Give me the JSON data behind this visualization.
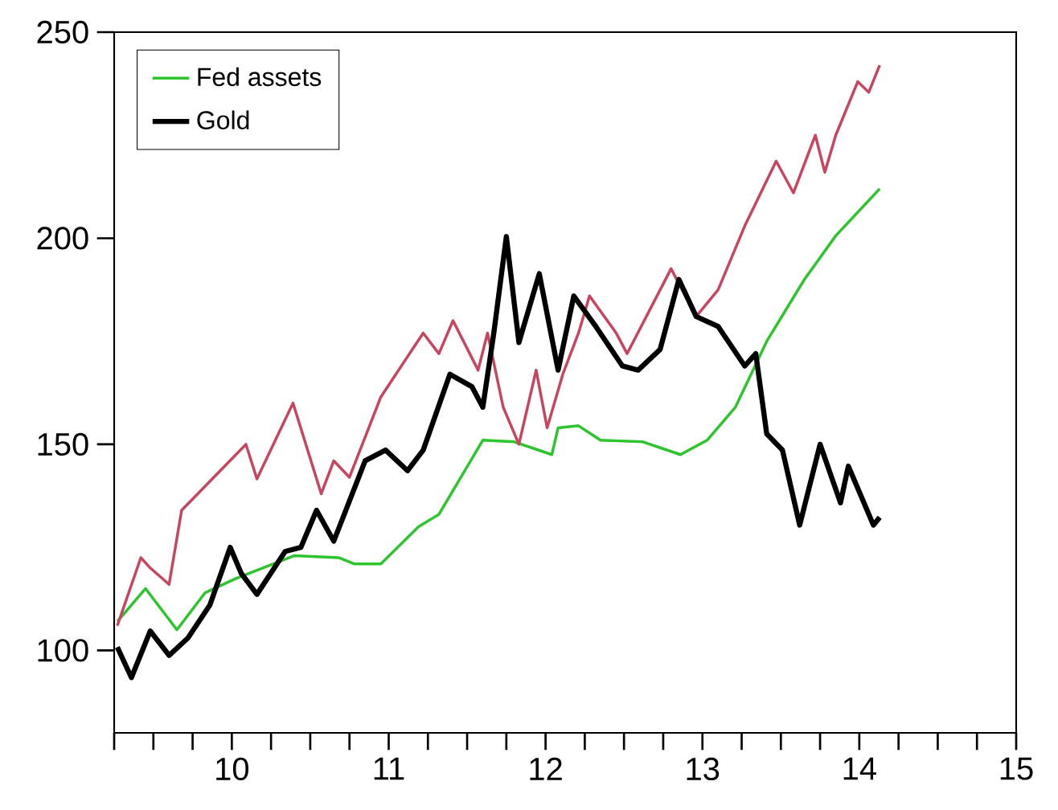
{
  "chart_data": {
    "type": "line",
    "legend": "top left",
    "grid": false,
    "marker": "none",
    "line_style": "solid",
    "xlim": [
      9.25,
      15
    ],
    "ylim": [
      80,
      250
    ],
    "xticks": [
      {
        "value": 9.25,
        "label": null
      },
      {
        "value": 9.5,
        "label": null
      },
      {
        "value": 9.75,
        "label": null
      },
      10,
      {
        "value": 10.25,
        "label": null
      },
      {
        "value": 10.5,
        "label": null
      },
      {
        "value": 10.75,
        "label": null
      },
      11,
      {
        "value": 11.25,
        "label": null
      },
      {
        "value": 11.5,
        "label": null
      },
      {
        "value": 11.75,
        "label": null
      },
      12,
      {
        "value": 12.25,
        "label": null
      },
      {
        "value": 12.5,
        "label": null
      },
      {
        "value": 12.75,
        "label": null
      },
      13,
      {
        "value": 13.25,
        "label": null
      },
      {
        "value": 13.5,
        "label": null
      },
      {
        "value": 13.75,
        "label": null
      },
      14,
      {
        "value": 14.25,
        "label": null
      },
      {
        "value": 14.5,
        "label": null
      },
      {
        "value": 14.75,
        "label": null
      },
      15
    ],
    "yticks": [
      100,
      150,
      200,
      250
    ],
    "series": [
      {
        "name": "Fed assets",
        "color": "#2ec42e",
        "x": [
          9.27,
          9.45,
          9.55,
          9.65,
          9.83,
          10.03,
          10.4,
          10.68,
          10.78,
          10.95,
          11.19,
          11.32,
          11.6,
          11.8,
          12.04,
          12.08,
          12.21,
          12.35,
          12.62,
          12.86,
          13.03,
          13.21,
          13.41,
          13.65,
          13.85,
          14.13
        ],
        "values": [
          107,
          115,
          110,
          105,
          114,
          117.5,
          123,
          122.5,
          121,
          121,
          130,
          133,
          151,
          150.6,
          147.5,
          154,
          154.5,
          151,
          150.6,
          147.5,
          151,
          159,
          175,
          190,
          200.6,
          212
        ]
      },
      {
        "color": "#c8455f",
        "x": [
          9.27,
          9.42,
          9.48,
          9.6,
          9.68,
          9.86,
          10.09,
          10.16,
          10.39,
          10.57,
          10.65,
          10.75,
          10.95,
          11.22,
          11.32,
          11.41,
          11.57,
          11.63,
          11.73,
          11.83,
          11.94,
          12.01,
          12.11,
          12.21,
          12.28,
          12.45,
          12.52,
          12.8,
          12.96,
          13.1,
          13.27,
          13.47,
          13.58,
          13.72,
          13.78,
          13.85,
          13.99,
          14.06,
          14.13
        ],
        "values": [
          106,
          122.5,
          120,
          116,
          134,
          141,
          150,
          141.6,
          160,
          138,
          146,
          142,
          161.5,
          177,
          172,
          180,
          168,
          177,
          159,
          150,
          168,
          154,
          167,
          177,
          186,
          177,
          172,
          192.6,
          181,
          187.5,
          203,
          218.7,
          211,
          225,
          216,
          225,
          238,
          235.4,
          242
        ]
      },
      {
        "name": "Gold",
        "color": "#000000",
        "x": [
          9.27,
          9.36,
          9.48,
          9.6,
          9.72,
          9.86,
          9.99,
          10.06,
          10.16,
          10.34,
          10.44,
          10.54,
          10.65,
          10.85,
          10.98,
          11.12,
          11.22,
          11.39,
          11.53,
          11.6,
          11.67,
          11.75,
          11.83,
          11.96,
          12.08,
          12.18,
          12.32,
          12.49,
          12.59,
          12.73,
          12.85,
          12.96,
          13.1,
          13.27,
          13.34,
          13.41,
          13.51,
          13.62,
          13.75,
          13.88,
          13.93,
          14.09,
          14.13
        ],
        "values": [
          100.8,
          93.4,
          104.7,
          98.8,
          103,
          111,
          125,
          118.7,
          113.6,
          124,
          125,
          134,
          126.5,
          146,
          148.6,
          143.6,
          148.6,
          167,
          164,
          159,
          177,
          200.4,
          174.7,
          191.4,
          168,
          186,
          178.6,
          169,
          168,
          173,
          190,
          181,
          178.6,
          169,
          172,
          152.5,
          148.6,
          130.4,
          150,
          135.8,
          144.7,
          130.4,
          132.3
        ]
      }
    ]
  }
}
